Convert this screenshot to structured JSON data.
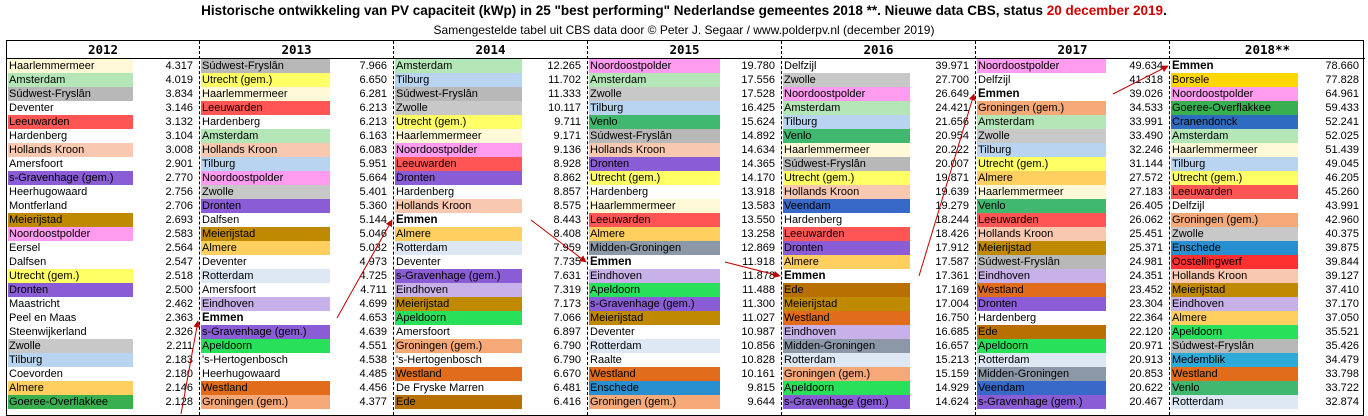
{
  "header": {
    "title_main": "Historische ontwikkeling van PV capaciteit (kWp) in 25 \"best performing\" Nederlandse gemeentes 2018 **. Nieuwe data CBS, status",
    "title_date": "20 december 2019",
    "title_end": ".",
    "subtitle": "Samengestelde tabel uit CBS data door © Peter J. Segaar / www.polderpv.nl (december 2019)"
  },
  "highlight": "Emmen",
  "colors": {
    "Haarlemmermeer": "#fff9d8",
    "Amsterdam": "#b4e6b8",
    "Súdwest-Fryslân": "#b8b8b8",
    "Deventer": "#ffffff",
    "Leeuwarden": "#ff5555",
    "Hardenberg": "#ffffff",
    "Hollands Kroon": "#f9c8b0",
    "Amersfoort": "#ffffff",
    "s-Gravenhage (gem.)": "#8a5cd6",
    "Heerhugowaard": "#ffffff",
    "Montferland": "#ffffff",
    "Meierijstad": "#c08a00",
    "Noordoostpolder": "#ff9cf0",
    "Eersel": "#ffffff",
    "Dalfsen": "#ffffff",
    "Utrecht (gem.)": "#ffff66",
    "Dronten": "#8a5cd6",
    "Maastricht": "#ffffff",
    "Peel en Maas": "#ffffff",
    "Steenwijkerland": "#ffffff",
    "Zwolle": "#c8c8c8",
    "Tilburg": "#b8d4f0",
    "Coevorden": "#ffffff",
    "Almere": "#ffd060",
    "Goeree-Overflakkee": "#38b050",
    "Emmen": "#ffffff",
    "Rotterdam": "#dde8f4",
    "Eindhoven": "#c8b0e8",
    "Apeldoorn": "#28e05a",
    "'s-Hertogenbosch": "#ffffff",
    "Westland": "#e06c1c",
    "Groningen (gem.)": "#f5a878",
    "De Fryske Marren": "#ffffff",
    "Ede": "#b87000",
    "Venlo": "#40b870",
    "Midden-Groningen": "#8c98a8",
    "Raalte": "#ffffff",
    "Enschede": "#2890d0",
    "Delfzijl": "#ffffff",
    "Veendam": "#3868c8",
    "Borsele": "#ffd700",
    "Cranendonck": "#2d6cc0",
    "Oostellingwerf": "#ff3030",
    "Medemblik": "#2eaad8"
  },
  "chart_data": {
    "type": "table",
    "columns": [
      {
        "year": "2012",
        "rows": [
          [
            "Haarlemmermeer",
            "4.317"
          ],
          [
            "Amsterdam",
            "4.019"
          ],
          [
            "Súdwest-Fryslân",
            "3.834"
          ],
          [
            "Deventer",
            "3.146"
          ],
          [
            "Leeuwarden",
            "3.132"
          ],
          [
            "Hardenberg",
            "3.104"
          ],
          [
            "Hollands Kroon",
            "3.008"
          ],
          [
            "Amersfoort",
            "2.901"
          ],
          [
            "s-Gravenhage (gem.)",
            "2.770"
          ],
          [
            "Heerhugowaard",
            "2.756"
          ],
          [
            "Montferland",
            "2.706"
          ],
          [
            "Meierijstad",
            "2.693"
          ],
          [
            "Noordoostpolder",
            "2.583"
          ],
          [
            "Eersel",
            "2.564"
          ],
          [
            "Dalfsen",
            "2.547"
          ],
          [
            "Utrecht (gem.)",
            "2.518"
          ],
          [
            "Dronten",
            "2.500"
          ],
          [
            "Maastricht",
            "2.462"
          ],
          [
            "Peel en Maas",
            "2.363"
          ],
          [
            "Steenwijkerland",
            "2.326"
          ],
          [
            "Zwolle",
            "2.211"
          ],
          [
            "Tilburg",
            "2.183"
          ],
          [
            "Coevorden",
            "2.180"
          ],
          [
            "Almere",
            "2.146"
          ],
          [
            "Goeree-Overflakkee",
            "2.128"
          ]
        ]
      },
      {
        "year": "2013",
        "rows": [
          [
            "Súdwest-Fryslân",
            "7.966"
          ],
          [
            "Utrecht (gem.)",
            "6.650"
          ],
          [
            "Haarlemmermeer",
            "6.281"
          ],
          [
            "Leeuwarden",
            "6.213"
          ],
          [
            "Hardenberg",
            "6.213"
          ],
          [
            "Amsterdam",
            "6.163"
          ],
          [
            "Hollands Kroon",
            "6.083"
          ],
          [
            "Tilburg",
            "5.951"
          ],
          [
            "Noordoostpolder",
            "5.664"
          ],
          [
            "Zwolle",
            "5.401"
          ],
          [
            "Dronten",
            "5.360"
          ],
          [
            "Dalfsen",
            "5.144"
          ],
          [
            "Meierijstad",
            "5.046"
          ],
          [
            "Almere",
            "5.032"
          ],
          [
            "Deventer",
            "4.973"
          ],
          [
            "Rotterdam",
            "4.725"
          ],
          [
            "Amersfoort",
            "4.711"
          ],
          [
            "Eindhoven",
            "4.699"
          ],
          [
            "Emmen",
            "4.653"
          ],
          [
            "s-Gravenhage (gem.)",
            "4.639"
          ],
          [
            "Apeldoorn",
            "4.551"
          ],
          [
            "'s-Hertogenbosch",
            "4.538"
          ],
          [
            "Heerhugowaard",
            "4.485"
          ],
          [
            "Westland",
            "4.456"
          ],
          [
            "Groningen (gem.)",
            "4.377"
          ]
        ]
      },
      {
        "year": "2014",
        "rows": [
          [
            "Amsterdam",
            "12.265"
          ],
          [
            "Tilburg",
            "11.702"
          ],
          [
            "Súdwest-Fryslân",
            "11.333"
          ],
          [
            "Zwolle",
            "10.117"
          ],
          [
            "Utrecht (gem.)",
            "9.711"
          ],
          [
            "Haarlemmermeer",
            "9.171"
          ],
          [
            "Noordoostpolder",
            "9.136"
          ],
          [
            "Leeuwarden",
            "8.928"
          ],
          [
            "Dronten",
            "8.862"
          ],
          [
            "Hardenberg",
            "8.857"
          ],
          [
            "Hollands Kroon",
            "8.575"
          ],
          [
            "Emmen",
            "8.443"
          ],
          [
            "Almere",
            "8.408"
          ],
          [
            "Rotterdam",
            "7.959"
          ],
          [
            "Deventer",
            "7.735"
          ],
          [
            "s-Gravenhage (gem.)",
            "7.631"
          ],
          [
            "Eindhoven",
            "7.319"
          ],
          [
            "Meierijstad",
            "7.173"
          ],
          [
            "Apeldoorn",
            "7.066"
          ],
          [
            "Amersfoort",
            "6.897"
          ],
          [
            "Groningen (gem.)",
            "6.790"
          ],
          [
            "'s-Hertogenbosch",
            "6.790"
          ],
          [
            "Westland",
            "6.670"
          ],
          [
            "De Fryske Marren",
            "6.481"
          ],
          [
            "Ede",
            "6.416"
          ]
        ]
      },
      {
        "year": "2015",
        "rows": [
          [
            "Noordoostpolder",
            "19.780"
          ],
          [
            "Amsterdam",
            "17.556"
          ],
          [
            "Zwolle",
            "17.528"
          ],
          [
            "Tilburg",
            "16.425"
          ],
          [
            "Venlo",
            "15.624"
          ],
          [
            "Súdwest-Fryslân",
            "14.892"
          ],
          [
            "Hollands Kroon",
            "14.634"
          ],
          [
            "Dronten",
            "14.365"
          ],
          [
            "Utrecht (gem.)",
            "14.170"
          ],
          [
            "Hardenberg",
            "13.918"
          ],
          [
            "Haarlemmermeer",
            "13.583"
          ],
          [
            "Leeuwarden",
            "13.550"
          ],
          [
            "Almere",
            "13.258"
          ],
          [
            "Midden-Groningen",
            "12.869"
          ],
          [
            "Emmen",
            "11.918"
          ],
          [
            "Eindhoven",
            "11.878"
          ],
          [
            "Apeldoorn",
            "11.488"
          ],
          [
            "s-Gravenhage (gem.)",
            "11.300"
          ],
          [
            "Meierijstad",
            "11.027"
          ],
          [
            "Deventer",
            "10.987"
          ],
          [
            "Rotterdam",
            "10.856"
          ],
          [
            "Raalte",
            "10.828"
          ],
          [
            "Westland",
            "10.161"
          ],
          [
            "Enschede",
            "9.815"
          ],
          [
            "Groningen (gem.)",
            "9.644"
          ]
        ]
      },
      {
        "year": "2016",
        "rows": [
          [
            "Delfzijl",
            "39.971"
          ],
          [
            "Zwolle",
            "27.700"
          ],
          [
            "Noordoostpolder",
            "26.649"
          ],
          [
            "Amsterdam",
            "24.421"
          ],
          [
            "Tilburg",
            "21.656"
          ],
          [
            "Venlo",
            "20.954"
          ],
          [
            "Haarlemmermeer",
            "20.222"
          ],
          [
            "Súdwest-Fryslân",
            "20.007"
          ],
          [
            "Utrecht (gem.)",
            "19.871"
          ],
          [
            "Hollands Kroon",
            "19.639"
          ],
          [
            "Veendam",
            "19.279"
          ],
          [
            "Hardenberg",
            "18.244"
          ],
          [
            "Leeuwarden",
            "18.426"
          ],
          [
            "Dronten",
            "17.912"
          ],
          [
            "Almere",
            "17.587"
          ],
          [
            "Emmen",
            "17.361"
          ],
          [
            "Ede",
            "17.169"
          ],
          [
            "Meierijstad",
            "17.004"
          ],
          [
            "Westland",
            "16.750"
          ],
          [
            "Eindhoven",
            "16.685"
          ],
          [
            "Midden-Groningen",
            "16.657"
          ],
          [
            "Rotterdam",
            "15.213"
          ],
          [
            "Groningen (gem.)",
            "15.159"
          ],
          [
            "Apeldoorn",
            "14.929"
          ],
          [
            "s-Gravenhage (gem.)",
            "14.624"
          ]
        ]
      },
      {
        "year": "2017",
        "rows": [
          [
            "Noordoostpolder",
            "49.634"
          ],
          [
            "Delfzijl",
            "41.318"
          ],
          [
            "Emmen",
            "39.026"
          ],
          [
            "Groningen (gem.)",
            "34.533"
          ],
          [
            "Amsterdam",
            "33.991"
          ],
          [
            "Zwolle",
            "33.490"
          ],
          [
            "Tilburg",
            "32.246"
          ],
          [
            "Utrecht (gem.)",
            "31.144"
          ],
          [
            "Almere",
            "27.572"
          ],
          [
            "Haarlemmermeer",
            "27.183"
          ],
          [
            "Venlo",
            "26.405"
          ],
          [
            "Leeuwarden",
            "26.062"
          ],
          [
            "Hollands Kroon",
            "25.451"
          ],
          [
            "Meierijstad",
            "25.371"
          ],
          [
            "Súdwest-Fryslân",
            "24.981"
          ],
          [
            "Eindhoven",
            "24.351"
          ],
          [
            "Westland",
            "23.452"
          ],
          [
            "Dronten",
            "23.304"
          ],
          [
            "Hardenberg",
            "22.364"
          ],
          [
            "Ede",
            "22.120"
          ],
          [
            "Apeldoorn",
            "20.971"
          ],
          [
            "Rotterdam",
            "20.913"
          ],
          [
            "Midden-Groningen",
            "20.853"
          ],
          [
            "Veendam",
            "20.622"
          ],
          [
            "s-Gravenhage (gem.)",
            "20.467"
          ]
        ]
      },
      {
        "year": "2018**",
        "rows": [
          [
            "Emmen",
            "78.660"
          ],
          [
            "Borsele",
            "77.828"
          ],
          [
            "Noordoostpolder",
            "64.961"
          ],
          [
            "Goeree-Overflakkee",
            "59.433"
          ],
          [
            "Cranendonck",
            "52.241"
          ],
          [
            "Amsterdam",
            "52.025"
          ],
          [
            "Haarlemmermeer",
            "51.439"
          ],
          [
            "Tilburg",
            "49.045"
          ],
          [
            "Utrecht (gem.)",
            "46.205"
          ],
          [
            "Leeuwarden",
            "45.260"
          ],
          [
            "Delfzijl",
            "43.991"
          ],
          [
            "Groningen (gem.)",
            "42.960"
          ],
          [
            "Zwolle",
            "40.375"
          ],
          [
            "Enschede",
            "39.875"
          ],
          [
            "Oostellingwerf",
            "39.844"
          ],
          [
            "Hollands Kroon",
            "39.127"
          ],
          [
            "Meierijstad",
            "37.410"
          ],
          [
            "Eindhoven",
            "37.170"
          ],
          [
            "Almere",
            "37.050"
          ],
          [
            "Apeldoorn",
            "35.521"
          ],
          [
            "Súdwest-Fryslân",
            "35.426"
          ],
          [
            "Medemblik",
            "34.479"
          ],
          [
            "Westland",
            "33.798"
          ],
          [
            "Venlo",
            "33.722"
          ],
          [
            "Rotterdam",
            "32.874"
          ]
        ]
      }
    ]
  }
}
